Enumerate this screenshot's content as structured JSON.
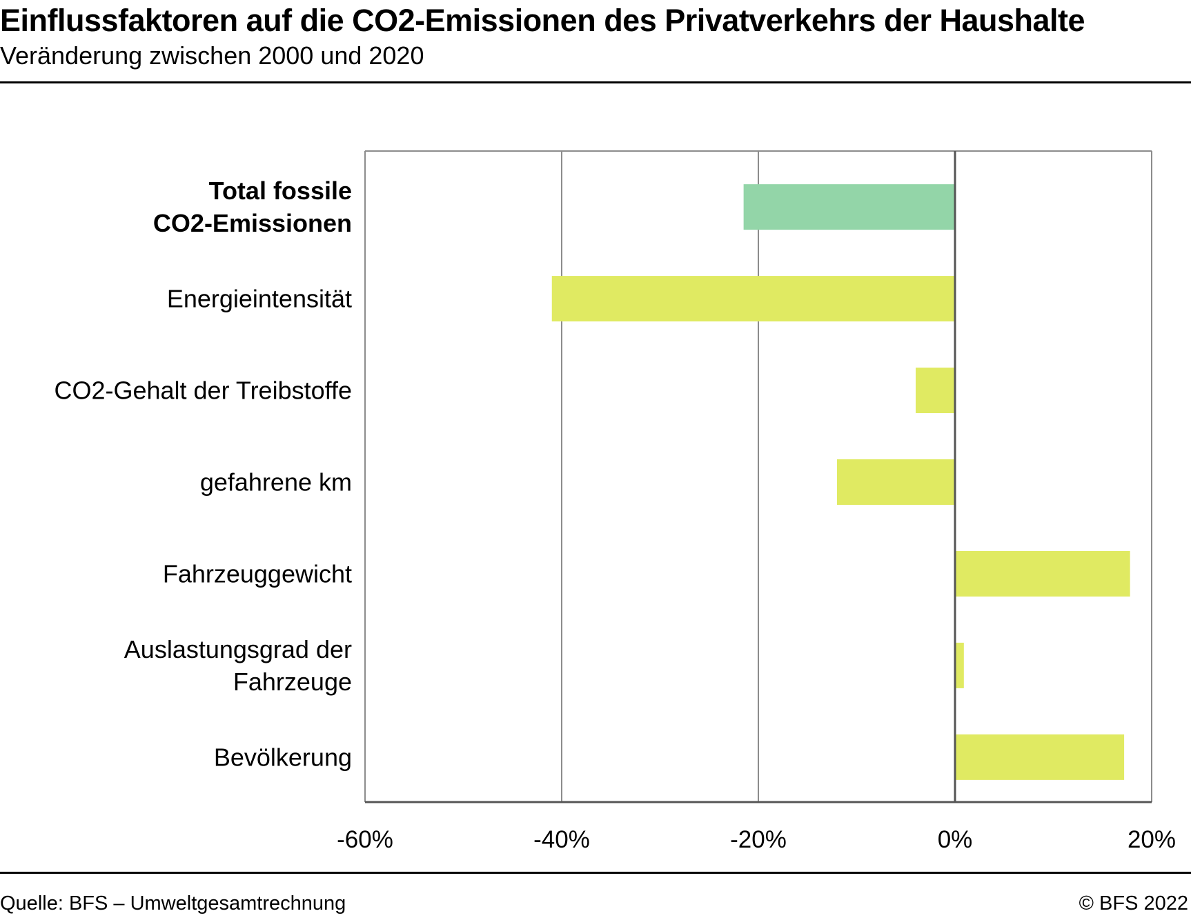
{
  "header": {
    "title": "Einflussfaktoren auf die CO2-Emissionen des Privatverkehrs der Haushalte",
    "subtitle": "Veränderung zwischen 2000 und 2020"
  },
  "footer": {
    "source": "Quelle: BFS – Umweltgesamtrechnung",
    "copyright": "© BFS 2022"
  },
  "colors": {
    "total_bar": "#93d5a8",
    "factor_bar": "#e0ea62",
    "grid": "#8c8c8c",
    "zero_line": "#555555"
  },
  "chart_data": {
    "type": "bar",
    "orientation": "horizontal",
    "title": "Einflussfaktoren auf die CO2-Emissionen des Privatverkehrs der Haushalte",
    "subtitle": "Veränderung zwischen 2000 und 2020",
    "xlabel": "",
    "ylabel": "",
    "xlim": [
      -60,
      20
    ],
    "x_ticks": [
      -60,
      -40,
      -20,
      0,
      20
    ],
    "x_tick_labels": [
      "-60%",
      "-40%",
      "-20%",
      "0%",
      "20%"
    ],
    "grid": true,
    "categories": [
      {
        "lines": [
          "Total fossile",
          "CO2-Emissionen"
        ],
        "bold": true,
        "kind": "total"
      },
      {
        "lines": [
          "Energieintensität"
        ],
        "bold": false,
        "kind": "factor"
      },
      {
        "lines": [
          "CO2-Gehalt der Treibstoffe"
        ],
        "bold": false,
        "kind": "factor"
      },
      {
        "lines": [
          "gefahrene km"
        ],
        "bold": false,
        "kind": "factor"
      },
      {
        "lines": [
          "Fahrzeuggewicht"
        ],
        "bold": false,
        "kind": "factor"
      },
      {
        "lines": [
          "Auslastungsgrad der",
          "Fahrzeuge"
        ],
        "bold": false,
        "kind": "factor"
      },
      {
        "lines": [
          "Bevölkerung"
        ],
        "bold": false,
        "kind": "factor"
      }
    ],
    "values": [
      -21.5,
      -41,
      -4,
      -12,
      17.8,
      0.9,
      17.2
    ]
  }
}
